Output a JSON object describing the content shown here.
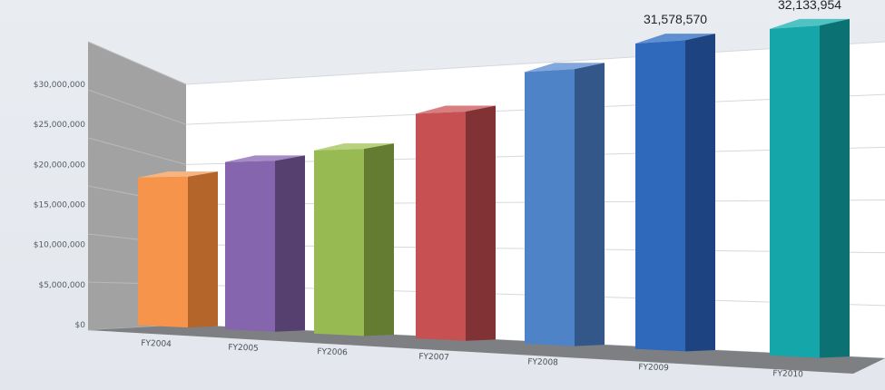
{
  "chart_data": {
    "type": "bar",
    "title": "",
    "xlabel": "",
    "ylabel": "",
    "categories": [
      "FY2004",
      "FY2005",
      "FY2006",
      "FY2007",
      "FY2008",
      "FY2009",
      "FY2010"
    ],
    "values": [
      18700000,
      20400000,
      21500000,
      25300000,
      29300000,
      31578570,
      32133954
    ],
    "data_labels": [
      "",
      "",
      "",
      "",
      "",
      "31,578,570",
      "32,133,954"
    ],
    "yticks": [
      "$0",
      "$5,000,000",
      "$10,000,000",
      "$15,000,000",
      "$20,000,000",
      "$25,000,000",
      "$30,000,000"
    ],
    "ylim": [
      0,
      30000000
    ],
    "grid": true,
    "style": "3d-perspective",
    "colors": [
      {
        "front": "#f5944a",
        "side": "#b3652a",
        "top": "#f8b47f"
      },
      {
        "front": "#8565ad",
        "side": "#554070",
        "top": "#a58bc6"
      },
      {
        "front": "#98ba52",
        "side": "#637c31",
        "top": "#b7d17f"
      },
      {
        "front": "#c65052",
        "side": "#813234",
        "top": "#d97e80"
      },
      {
        "front": "#4f83c8",
        "side": "#34578a",
        "top": "#82a7dc"
      },
      {
        "front": "#2f69bc",
        "side": "#1d4380",
        "top": "#5f8ed1"
      },
      {
        "front": "#14a6a8",
        "side": "#0c7173",
        "top": "#4fc3c4"
      }
    ]
  }
}
